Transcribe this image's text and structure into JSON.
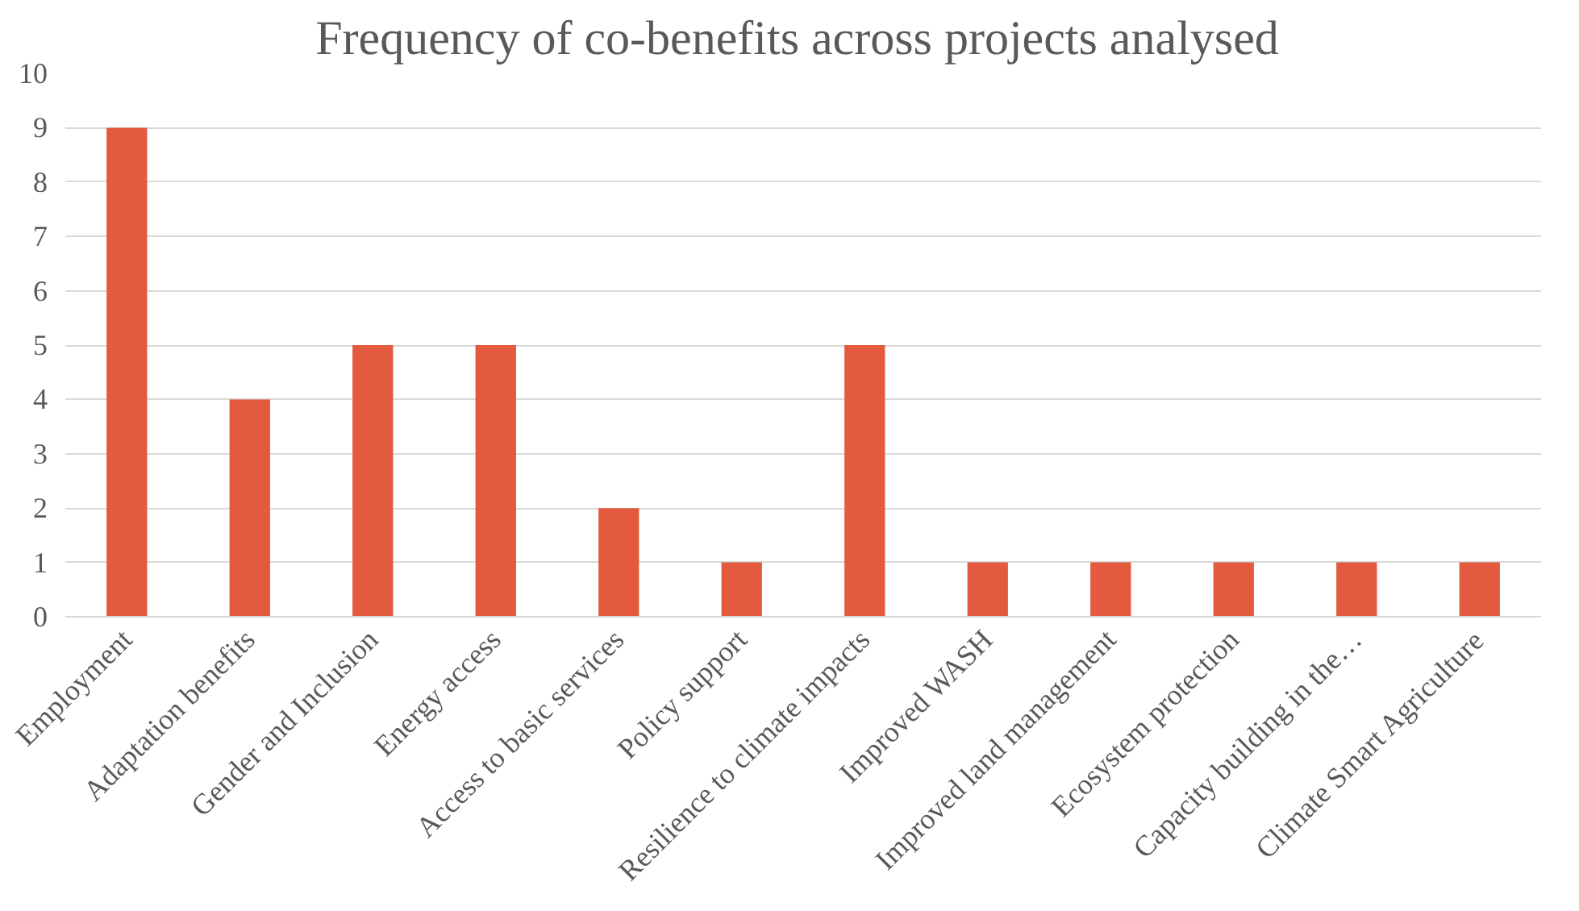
{
  "chart_data": {
    "type": "bar",
    "title": "Frequency of  co-benefits across projects analysed",
    "categories": [
      "Employment",
      "Adaptation benefits",
      "Gender and Inclusion",
      "Energy access",
      "Access to basic services",
      "Policy support",
      "Resilience to climate impacts",
      "Improved WASH",
      "Improved land management",
      "Ecosystem protection",
      "Capacity building in the…",
      "Climate Smart Agriculture"
    ],
    "values": [
      9,
      4,
      5,
      5,
      2,
      1,
      5,
      1,
      1,
      1,
      1,
      1
    ],
    "color": "#e35a3f",
    "ylim": [
      0,
      10
    ],
    "yticks": [
      0,
      1,
      2,
      3,
      4,
      5,
      6,
      7,
      8,
      9,
      10
    ],
    "grid": "y"
  }
}
